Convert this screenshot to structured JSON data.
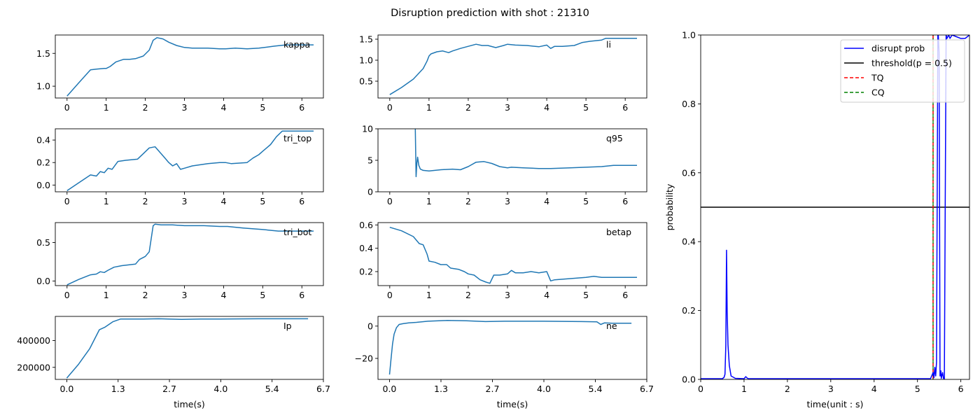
{
  "figure": {
    "title": "Disruption prediction with shot : 21310"
  },
  "colors": {
    "signal": "#1f77b4",
    "prob": "#0000ff",
    "threshold": "#000000",
    "tq": "#ff0000",
    "cq": "#008000"
  },
  "chart_data": [
    {
      "type": "line",
      "id": "kappa",
      "label": "kappa",
      "xlim": [
        -0.3,
        6.55
      ],
      "ylim": [
        0.82,
        1.78
      ],
      "xticks": [
        "0",
        "1",
        "2",
        "3",
        "4",
        "5",
        "6"
      ],
      "xtick_values": [
        0,
        1,
        2,
        3,
        4,
        5,
        6
      ],
      "yticks": [
        "1.0",
        "1.5"
      ],
      "ytick_values": [
        1.0,
        1.5
      ],
      "x": [
        0,
        0.3,
        0.6,
        0.75,
        0.95,
        1.0,
        1.1,
        1.25,
        1.45,
        1.6,
        1.75,
        1.95,
        2.1,
        2.2,
        2.3,
        2.45,
        2.6,
        2.8,
        3.0,
        3.2,
        3.6,
        3.9,
        4.05,
        4.3,
        4.6,
        4.9,
        5.3,
        5.6,
        6.3
      ],
      "y": [
        0.85,
        1.05,
        1.25,
        1.26,
        1.27,
        1.27,
        1.3,
        1.37,
        1.41,
        1.41,
        1.42,
        1.46,
        1.55,
        1.7,
        1.74,
        1.72,
        1.67,
        1.62,
        1.59,
        1.58,
        1.58,
        1.57,
        1.57,
        1.58,
        1.57,
        1.58,
        1.61,
        1.63,
        1.63
      ]
    },
    {
      "type": "line",
      "id": "li",
      "label": "li",
      "xlim": [
        -0.3,
        6.55
      ],
      "ylim": [
        0.1,
        1.6
      ],
      "xticks": [
        "0",
        "1",
        "2",
        "3",
        "4",
        "5",
        "6"
      ],
      "xtick_values": [
        0,
        1,
        2,
        3,
        4,
        5,
        6
      ],
      "yticks": [
        "0.5",
        "1.0",
        "1.5"
      ],
      "ytick_values": [
        0.5,
        1.0,
        1.5
      ],
      "x": [
        0,
        0.3,
        0.6,
        0.7,
        0.85,
        0.95,
        1.0,
        1.05,
        1.2,
        1.35,
        1.5,
        1.6,
        1.8,
        2.0,
        2.2,
        2.35,
        2.5,
        2.7,
        2.9,
        3.0,
        3.2,
        3.5,
        3.8,
        4.0,
        4.1,
        4.2,
        4.4,
        4.7,
        4.9,
        5.1,
        5.4,
        5.5,
        6.3
      ],
      "y": [
        0.18,
        0.35,
        0.55,
        0.65,
        0.8,
        0.98,
        1.1,
        1.15,
        1.2,
        1.22,
        1.18,
        1.22,
        1.28,
        1.33,
        1.38,
        1.35,
        1.35,
        1.3,
        1.35,
        1.38,
        1.36,
        1.35,
        1.32,
        1.36,
        1.28,
        1.33,
        1.33,
        1.35,
        1.42,
        1.45,
        1.48,
        1.52,
        1.52
      ]
    },
    {
      "type": "line",
      "id": "tri_top",
      "label": "tri_top",
      "xlim": [
        -0.3,
        6.55
      ],
      "ylim": [
        -0.06,
        0.5
      ],
      "xticks": [
        "0",
        "1",
        "2",
        "3",
        "4",
        "5",
        "6"
      ],
      "xtick_values": [
        0,
        1,
        2,
        3,
        4,
        5,
        6
      ],
      "yticks": [
        "0.0",
        "0.2",
        "0.4"
      ],
      "ytick_values": [
        0.0,
        0.2,
        0.4
      ],
      "x": [
        0,
        0.3,
        0.6,
        0.75,
        0.85,
        0.95,
        1.05,
        1.15,
        1.3,
        1.5,
        1.8,
        1.95,
        2.1,
        2.25,
        2.35,
        2.5,
        2.6,
        2.7,
        2.8,
        2.9,
        3.0,
        3.2,
        3.6,
        3.9,
        4.05,
        4.2,
        4.6,
        4.75,
        4.9,
        5.0,
        5.1,
        5.2,
        5.35,
        5.5,
        6.3
      ],
      "y": [
        -0.05,
        0.02,
        0.09,
        0.08,
        0.12,
        0.11,
        0.15,
        0.14,
        0.21,
        0.22,
        0.23,
        0.28,
        0.33,
        0.34,
        0.3,
        0.24,
        0.2,
        0.17,
        0.19,
        0.14,
        0.15,
        0.17,
        0.19,
        0.2,
        0.2,
        0.19,
        0.2,
        0.24,
        0.27,
        0.3,
        0.33,
        0.36,
        0.43,
        0.48,
        0.48
      ]
    },
    {
      "type": "line",
      "id": "q95",
      "label": "q95",
      "xlim": [
        -0.3,
        6.55
      ],
      "ylim": [
        0,
        10
      ],
      "xticks": [
        "0",
        "1",
        "2",
        "3",
        "4",
        "5",
        "6"
      ],
      "xtick_values": [
        0,
        1,
        2,
        3,
        4,
        5,
        6
      ],
      "yticks": [
        "0",
        "5",
        "10"
      ],
      "ytick_values": [
        0,
        5,
        10
      ],
      "x": [
        0.65,
        0.67,
        0.69,
        0.71,
        0.74,
        0.78,
        0.85,
        1.0,
        1.3,
        1.6,
        1.8,
        2.0,
        2.2,
        2.4,
        2.6,
        2.8,
        3.0,
        3.1,
        3.4,
        3.8,
        4.1,
        4.6,
        5.0,
        5.4,
        5.7,
        6.3
      ],
      "y": [
        10,
        2.4,
        4.5,
        5.5,
        4.2,
        3.6,
        3.4,
        3.3,
        3.5,
        3.6,
        3.5,
        4.0,
        4.7,
        4.8,
        4.5,
        4.0,
        3.8,
        3.9,
        3.8,
        3.7,
        3.7,
        3.8,
        3.9,
        4.0,
        4.2,
        4.2
      ]
    },
    {
      "type": "line",
      "id": "tri_bot",
      "label": "tri_bot",
      "xlim": [
        -0.3,
        6.55
      ],
      "ylim": [
        -0.06,
        0.76
      ],
      "xticks": [
        "0",
        "1",
        "2",
        "3",
        "4",
        "5",
        "6"
      ],
      "xtick_values": [
        0,
        1,
        2,
        3,
        4,
        5,
        6
      ],
      "yticks": [
        "0.0",
        "0.5"
      ],
      "ytick_values": [
        0.0,
        0.5
      ],
      "x": [
        0,
        0.3,
        0.6,
        0.75,
        0.85,
        0.95,
        1.05,
        1.2,
        1.4,
        1.75,
        1.85,
        2.0,
        2.1,
        2.15,
        2.2,
        2.25,
        2.4,
        2.7,
        3.0,
        3.5,
        3.9,
        4.1,
        4.5,
        5.0,
        5.4,
        6.3
      ],
      "y": [
        -0.05,
        0.02,
        0.08,
        0.09,
        0.12,
        0.11,
        0.14,
        0.18,
        0.2,
        0.22,
        0.28,
        0.32,
        0.38,
        0.55,
        0.72,
        0.74,
        0.73,
        0.73,
        0.72,
        0.72,
        0.71,
        0.71,
        0.69,
        0.67,
        0.65,
        0.65
      ]
    },
    {
      "type": "line",
      "id": "betap",
      "label": "betap",
      "xlim": [
        -0.3,
        6.55
      ],
      "ylim": [
        0.08,
        0.62
      ],
      "xticks": [
        "0",
        "1",
        "2",
        "3",
        "4",
        "5",
        "6"
      ],
      "xtick_values": [
        0,
        1,
        2,
        3,
        4,
        5,
        6
      ],
      "yticks": [
        "0.2",
        "0.4",
        "0.6"
      ],
      "ytick_values": [
        0.2,
        0.4,
        0.6
      ],
      "x": [
        0,
        0.3,
        0.6,
        0.75,
        0.85,
        0.95,
        1.0,
        1.15,
        1.3,
        1.45,
        1.55,
        1.75,
        1.9,
        2.0,
        2.15,
        2.3,
        2.45,
        2.55,
        2.65,
        2.8,
        3.0,
        3.1,
        3.2,
        3.4,
        3.6,
        3.8,
        4.0,
        4.05,
        4.1,
        4.2,
        4.6,
        5.0,
        5.2,
        5.4,
        6.3
      ],
      "y": [
        0.58,
        0.55,
        0.5,
        0.44,
        0.43,
        0.35,
        0.29,
        0.28,
        0.26,
        0.26,
        0.23,
        0.22,
        0.2,
        0.18,
        0.17,
        0.13,
        0.11,
        0.1,
        0.17,
        0.17,
        0.18,
        0.21,
        0.19,
        0.19,
        0.2,
        0.19,
        0.2,
        0.16,
        0.12,
        0.13,
        0.14,
        0.15,
        0.16,
        0.15,
        0.15
      ]
    },
    {
      "type": "line",
      "id": "ip",
      "label": "Ip",
      "xlim": [
        -0.3,
        6.7
      ],
      "ylim": [
        110000,
        580000
      ],
      "xticks": [
        "0.0",
        "1.3",
        "2.7",
        "4.0",
        "5.4",
        "6.7"
      ],
      "xtick_values": [
        0,
        1.34,
        2.68,
        4.02,
        5.36,
        6.7
      ],
      "yticks": [
        "200000",
        "400000"
      ],
      "ytick_values": [
        200000,
        400000
      ],
      "xlabel": "time(s)",
      "x": [
        0,
        0.3,
        0.6,
        0.85,
        1.0,
        1.2,
        1.4,
        1.6,
        2.0,
        2.4,
        3.0,
        3.5,
        4.0,
        5.0,
        6.3
      ],
      "y": [
        120000,
        220000,
        340000,
        480000,
        500000,
        540000,
        560000,
        560000,
        560000,
        562000,
        558000,
        560000,
        560000,
        562000,
        562000
      ]
    },
    {
      "type": "line",
      "id": "ne",
      "label": "ne",
      "xlim": [
        -0.3,
        6.7
      ],
      "ylim": [
        -33,
        6
      ],
      "xticks": [
        "0.0",
        "1.3",
        "2.7",
        "4.0",
        "5.4",
        "6.7"
      ],
      "xtick_values": [
        0,
        1.34,
        2.68,
        4.02,
        5.36,
        6.7
      ],
      "yticks": [
        "−20",
        "0"
      ],
      "ytick_values": [
        -20,
        0
      ],
      "xlabel": "time(s)",
      "x": [
        0,
        0.04,
        0.08,
        0.12,
        0.18,
        0.25,
        0.35,
        0.5,
        0.7,
        1.0,
        1.5,
        2.0,
        2.5,
        3.0,
        4.0,
        5.0,
        5.4,
        5.5,
        5.6,
        5.8,
        6.3
      ],
      "y": [
        -30,
        -20,
        -11,
        -5,
        -1,
        1,
        1.5,
        2,
        2.3,
        3,
        3.5,
        3.3,
        2.8,
        3,
        3,
        2.8,
        2.6,
        1,
        2,
        1.8,
        1.8
      ]
    },
    {
      "type": "line",
      "id": "prob",
      "xlim": [
        0,
        6.2
      ],
      "ylim": [
        0,
        1.0
      ],
      "xticks": [
        "0",
        "1",
        "2",
        "3",
        "4",
        "5",
        "6"
      ],
      "xtick_values": [
        0,
        1,
        2,
        3,
        4,
        5,
        6
      ],
      "yticks": [
        "0.0",
        "0.2",
        "0.4",
        "0.6",
        "0.8",
        "1.0"
      ],
      "ytick_values": [
        0,
        0.2,
        0.4,
        0.6,
        0.8,
        1.0
      ],
      "xlabel": "time(unit : s)",
      "ylabel": "probability",
      "legend_position": "top-right",
      "series": [
        {
          "name": "disrupt prob",
          "style": "solid",
          "x": [
            0,
            0.5,
            0.54,
            0.56,
            0.58,
            0.595,
            0.61,
            0.63,
            0.66,
            0.7,
            0.8,
            1.0,
            1.04,
            1.07,
            1.1,
            2.0,
            3.0,
            4.0,
            5.0,
            5.3,
            5.36,
            5.38,
            5.4,
            5.42,
            5.44,
            5.46,
            5.47,
            5.48,
            5.5,
            5.52,
            5.54,
            5.55,
            5.56,
            5.58,
            5.6,
            5.62,
            5.64,
            5.66,
            5.68,
            5.72,
            5.75,
            5.8,
            5.9,
            6.0,
            6.1,
            6.2
          ],
          "y": [
            0.002,
            0.002,
            0.006,
            0.015,
            0.1,
            0.375,
            0.2,
            0.1,
            0.04,
            0.01,
            0.003,
            0.002,
            0.008,
            0.004,
            0.002,
            0.002,
            0.002,
            0.002,
            0.002,
            0.002,
            0.02,
            0.005,
            0.035,
            0.01,
            0.05,
            0.7,
            1.0,
            1.0,
            0.95,
            0.01,
            0.025,
            0.003,
            0.01,
            0.02,
            0.003,
            0.002,
            0.5,
            1.0,
            0.99,
            1.0,
            0.99,
            1.0,
            0.995,
            0.99,
            0.99,
            1.0
          ]
        },
        {
          "name": "threshold(p = 0.5)",
          "style": "solid",
          "value": 0.5
        },
        {
          "name": "TQ",
          "style": "dashed",
          "x_value": 5.36
        },
        {
          "name": "CQ",
          "style": "dashed",
          "x_value": 5.36
        }
      ]
    }
  ]
}
